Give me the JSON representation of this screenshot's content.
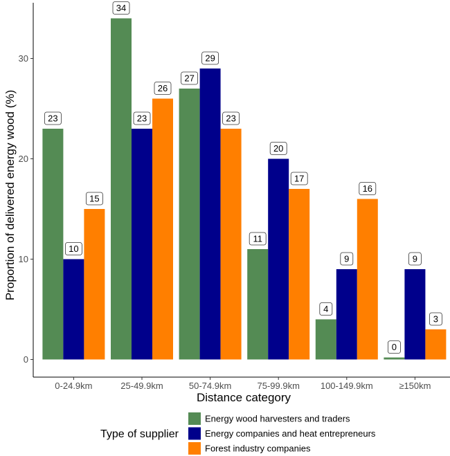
{
  "chart_data": {
    "type": "bar",
    "xlabel": "Distance category",
    "ylabel": "Proportion of delivered energy wood (%)",
    "ylim": [
      0,
      35.5
    ],
    "yticks": [
      0,
      10,
      20,
      30
    ],
    "grid": false,
    "categories": [
      "0-24.9km",
      "25-49.9km",
      "50-74.9km",
      "75-99.9km",
      "100-149.9km",
      "≥150km"
    ],
    "series": [
      {
        "name": "Energy wood harvesters and traders",
        "color": "#548b54",
        "values": [
          23,
          34,
          27,
          11,
          4,
          0.2
        ],
        "labels": [
          "23",
          "34",
          "27",
          "11",
          "4",
          "0"
        ]
      },
      {
        "name": "Energy companies and heat entrepreneurs",
        "color": "#00008b",
        "values": [
          10,
          23,
          29,
          20,
          9,
          9
        ],
        "labels": [
          "10",
          "23",
          "29",
          "20",
          "9",
          "9"
        ]
      },
      {
        "name": "Forest industry companies",
        "color": "#ff7f00",
        "values": [
          15,
          26,
          23,
          17,
          16,
          3
        ],
        "labels": [
          "15",
          "26",
          "23",
          "17",
          "16",
          "3"
        ]
      }
    ],
    "legend": {
      "title": "Type of supplier",
      "position": "bottom"
    }
  }
}
